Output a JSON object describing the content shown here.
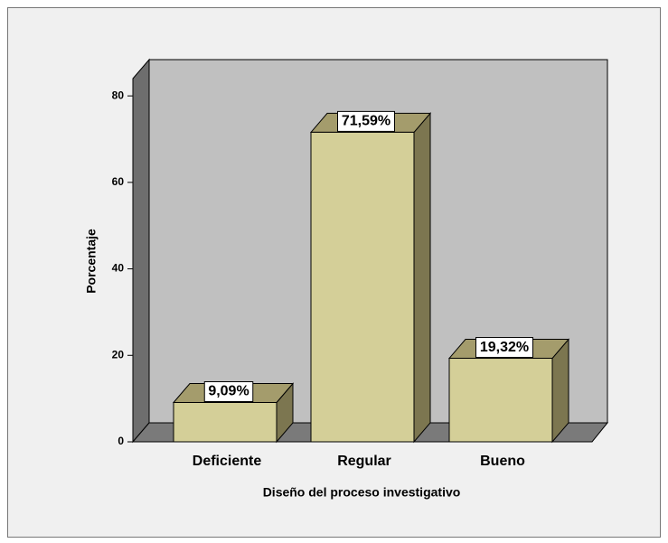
{
  "chart_data": {
    "type": "bar3d",
    "x_label": "Diseño del proceso investigativo",
    "y_label": "Porcentaje",
    "categories": [
      "Deficiente",
      "Regular",
      "Bueno"
    ],
    "values": [
      9.09,
      71.59,
      19.32
    ],
    "value_labels": [
      "9,09%",
      "71,59%",
      "19,32%"
    ],
    "color": "#d4cf98",
    "ylim": [
      0,
      84
    ],
    "yticks": [
      0,
      20,
      40,
      60,
      80
    ]
  }
}
